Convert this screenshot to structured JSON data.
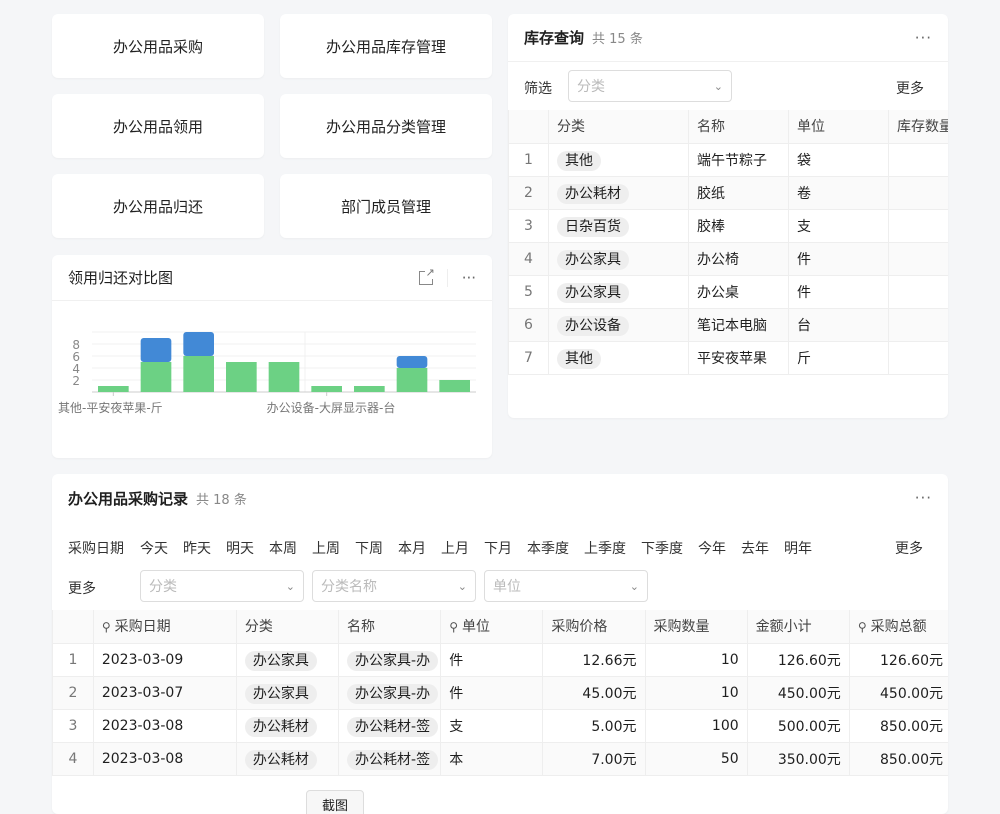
{
  "nav_buttons": [
    "办公用品采购",
    "办公用品库存管理",
    "办公用品领用",
    "办公用品分类管理",
    "办公用品归还",
    "部门成员管理"
  ],
  "chart_card": {
    "title": "领用归还对比图",
    "expand_icon": "external-link-icon",
    "more_icon": "ellipsis-icon"
  },
  "chart_data": {
    "type": "bar",
    "stacked": true,
    "categories_shown": [
      "其他-平安夜苹果-斤",
      "办公设备-大屏显示器-台"
    ],
    "series": [
      {
        "values": [
          1,
          5,
          6,
          5,
          5,
          1,
          1,
          4,
          2
        ],
        "color": "#6cd184"
      },
      {
        "values": [
          0,
          4,
          4,
          0,
          0,
          0,
          0,
          2,
          0
        ],
        "color": "#4289d6"
      }
    ],
    "yticks": [
      2,
      4,
      6,
      8
    ],
    "ylim": [
      0,
      10
    ],
    "grid": true
  },
  "inventory": {
    "title": "库存查询",
    "count": "共 15 条",
    "filter_label": "筛选",
    "filter_placeholder": "分类",
    "more": "更多",
    "columns": [
      "分类",
      "名称",
      "单位",
      "库存数量"
    ],
    "rows": [
      [
        "1",
        "其他",
        "端午节粽子",
        "袋"
      ],
      [
        "2",
        "办公耗材",
        "胶纸",
        "卷"
      ],
      [
        "3",
        "日杂百货",
        "胶棒",
        "支"
      ],
      [
        "4",
        "办公家具",
        "办公椅",
        "件"
      ],
      [
        "5",
        "办公家具",
        "办公桌",
        "件"
      ],
      [
        "6",
        "办公设备",
        "笔记本电脑",
        "台"
      ],
      [
        "7",
        "其他",
        "平安夜苹果",
        "斤"
      ]
    ]
  },
  "purchase": {
    "title": "办公用品采购记录",
    "count": "共 18 条",
    "date_label": "采购日期",
    "date_filters": [
      "今天",
      "昨天",
      "明天",
      "本周",
      "上周",
      "下周",
      "本月",
      "上月",
      "下月",
      "本季度",
      "上季度",
      "下季度",
      "今年",
      "去年",
      "明年"
    ],
    "more": "更多",
    "more2": "更多",
    "placeholders": [
      "分类",
      "分类名称",
      "单位"
    ],
    "columns": [
      "采购日期",
      "分类",
      "名称",
      "单位",
      "采购价格",
      "采购数量",
      "金额小计",
      "采购总额"
    ],
    "rows": [
      [
        "1",
        "2023-03-09",
        "办公家具",
        "办公家具-办",
        "件",
        "12.66元",
        "10",
        "126.60元",
        "126.60元"
      ],
      [
        "2",
        "2023-03-07",
        "办公家具",
        "办公家具-办",
        "件",
        "45.00元",
        "10",
        "450.00元",
        "450.00元"
      ],
      [
        "3",
        "2023-03-08",
        "办公耗材",
        "办公耗材-签",
        "支",
        "5.00元",
        "100",
        "500.00元",
        "850.00元"
      ],
      [
        "4",
        "2023-03-08",
        "办公耗材",
        "办公耗材-签",
        "本",
        "7.00元",
        "50",
        "350.00元",
        "850.00元"
      ]
    ],
    "bottom_button": "截图"
  }
}
